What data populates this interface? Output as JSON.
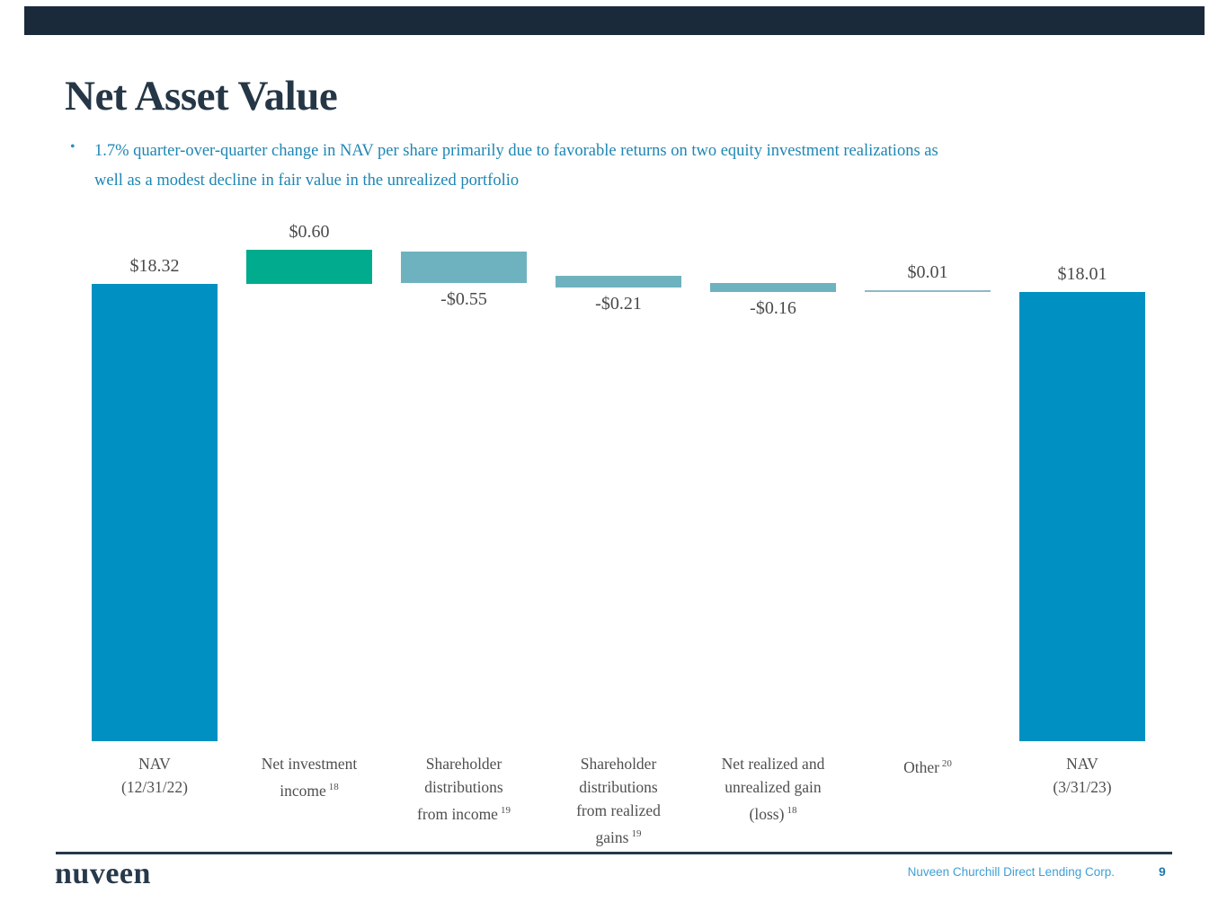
{
  "slide": {
    "title": "Net Asset Value",
    "bullet": {
      "marker": "•",
      "line1": "1.7% quarter-over-quarter change in NAV per share primarily due to favorable returns on two equity investment realizations as",
      "line2": "well as a modest decline in fair value in the unrealized portfolio"
    }
  },
  "chart_data": {
    "type": "bar",
    "subtype": "waterfall",
    "categories": [
      "NAV (12/31/22)",
      "Net investment income",
      "Shareholder distributions from income",
      "Shareholder distributions from realized gains",
      "Net realized and unrealized gain (loss)",
      "Other",
      "NAV (3/31/23)"
    ],
    "bars": [
      {
        "label_lines": [
          "NAV",
          "(12/31/22)"
        ],
        "footnote": "",
        "value": 18.32,
        "display": "$18.32",
        "kind": "total",
        "thin": false,
        "color": "#0090C1"
      },
      {
        "label_lines": [
          "Net investment",
          "income"
        ],
        "footnote": "18",
        "value": 0.6,
        "display": "$0.60",
        "kind": "delta",
        "thin": false,
        "color": "#00AB8E"
      },
      {
        "label_lines": [
          "Shareholder",
          "distributions",
          "from income"
        ],
        "footnote": "19",
        "value": -0.55,
        "display": "-$0.55",
        "kind": "delta",
        "thin": false,
        "color": "#6FB2BF"
      },
      {
        "label_lines": [
          "Shareholder",
          "distributions",
          "from realized",
          "gains"
        ],
        "footnote": "19",
        "value": -0.21,
        "display": "-$0.21",
        "kind": "delta",
        "thin": false,
        "color": "#6FB2BF"
      },
      {
        "label_lines": [
          "Net realized and",
          "unrealized gain",
          "(loss)"
        ],
        "footnote": "18",
        "value": -0.16,
        "display": "-$0.16",
        "kind": "delta",
        "thin": false,
        "color": "#6FB2BF"
      },
      {
        "label_lines": [
          "Other"
        ],
        "footnote": "20",
        "value": 0.01,
        "display": "$0.01",
        "kind": "delta",
        "thin": true,
        "color": "#8FB9C5"
      },
      {
        "label_lines": [
          "NAV",
          "(3/31/23)"
        ],
        "footnote": "",
        "value": 18.01,
        "display": "$18.01",
        "kind": "total",
        "thin": false,
        "color": "#0090C1"
      }
    ],
    "ylim": [
      0,
      19
    ],
    "grid": false,
    "legend": false,
    "title": ""
  },
  "footer": {
    "brand": "nuveen",
    "company": "Nuveen Churchill Direct Lending Corp.",
    "page_number": "9"
  },
  "colors": {
    "top_bar": "#1B2A3A",
    "navy": "#253746",
    "bullet_text": "#1E86B4",
    "primary_blue": "#0090C1",
    "green": "#00AB8E",
    "teal": "#6FB2BF",
    "thin_line": "#8FB9C5",
    "label_gray": "#4A4A4A",
    "footer_blue": "#3FA0D4",
    "page_number_blue": "#2179AE"
  }
}
